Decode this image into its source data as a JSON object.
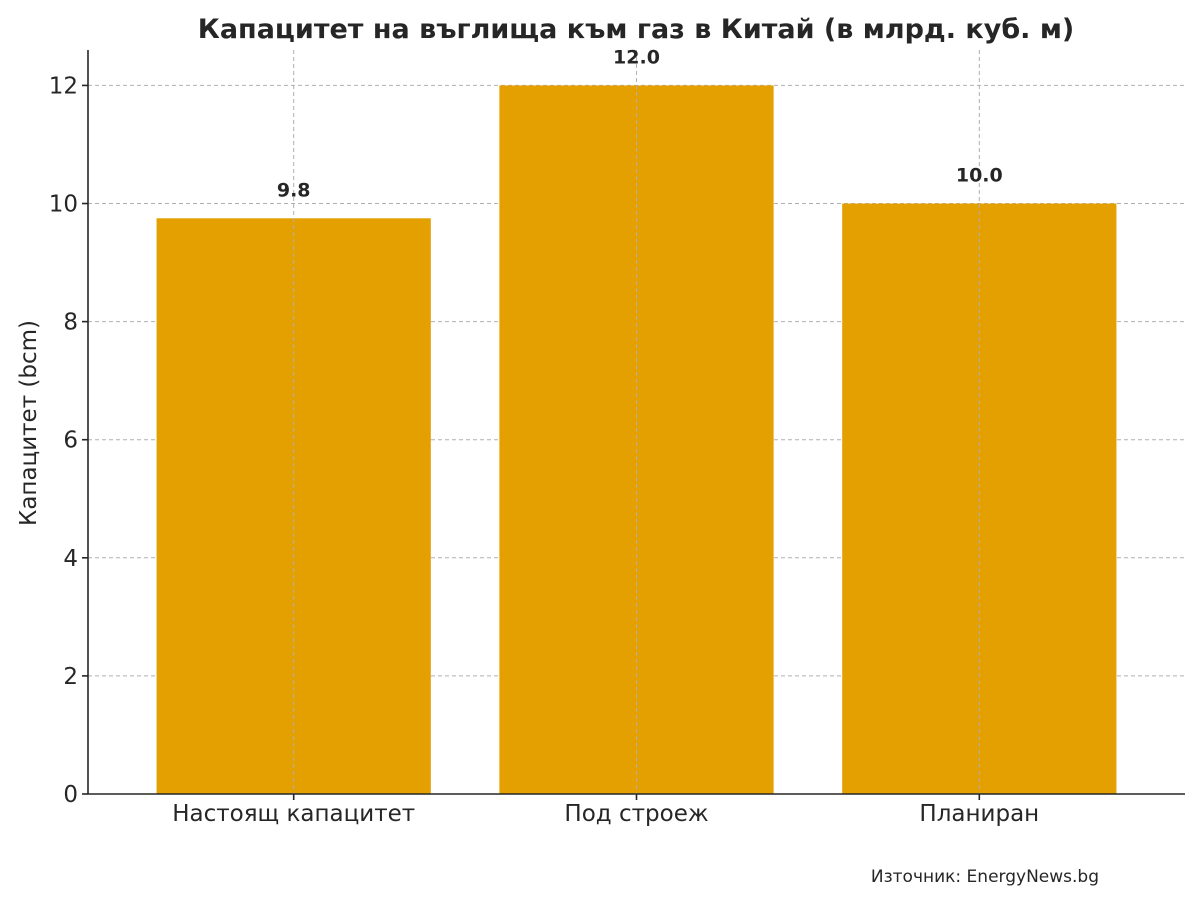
{
  "chart_data": {
    "type": "bar",
    "title": "Капацитет на въглища към газ в Китай (в млрд. куб. м)",
    "xlabel": "",
    "ylabel": "Капацитет (bcm)",
    "categories": [
      "Настоящ капацитет",
      "Под строеж",
      "Планиран"
    ],
    "values": [
      9.75,
      12.0,
      10.0
    ],
    "value_labels": [
      "9.8",
      "12.0",
      "10.0"
    ],
    "ylim": [
      0,
      12.6
    ],
    "yticks": [
      0,
      2,
      4,
      6,
      8,
      10,
      12
    ],
    "grid": true,
    "bar_color": "#E3A000",
    "source": "Източник: EnergyNews.bg"
  }
}
